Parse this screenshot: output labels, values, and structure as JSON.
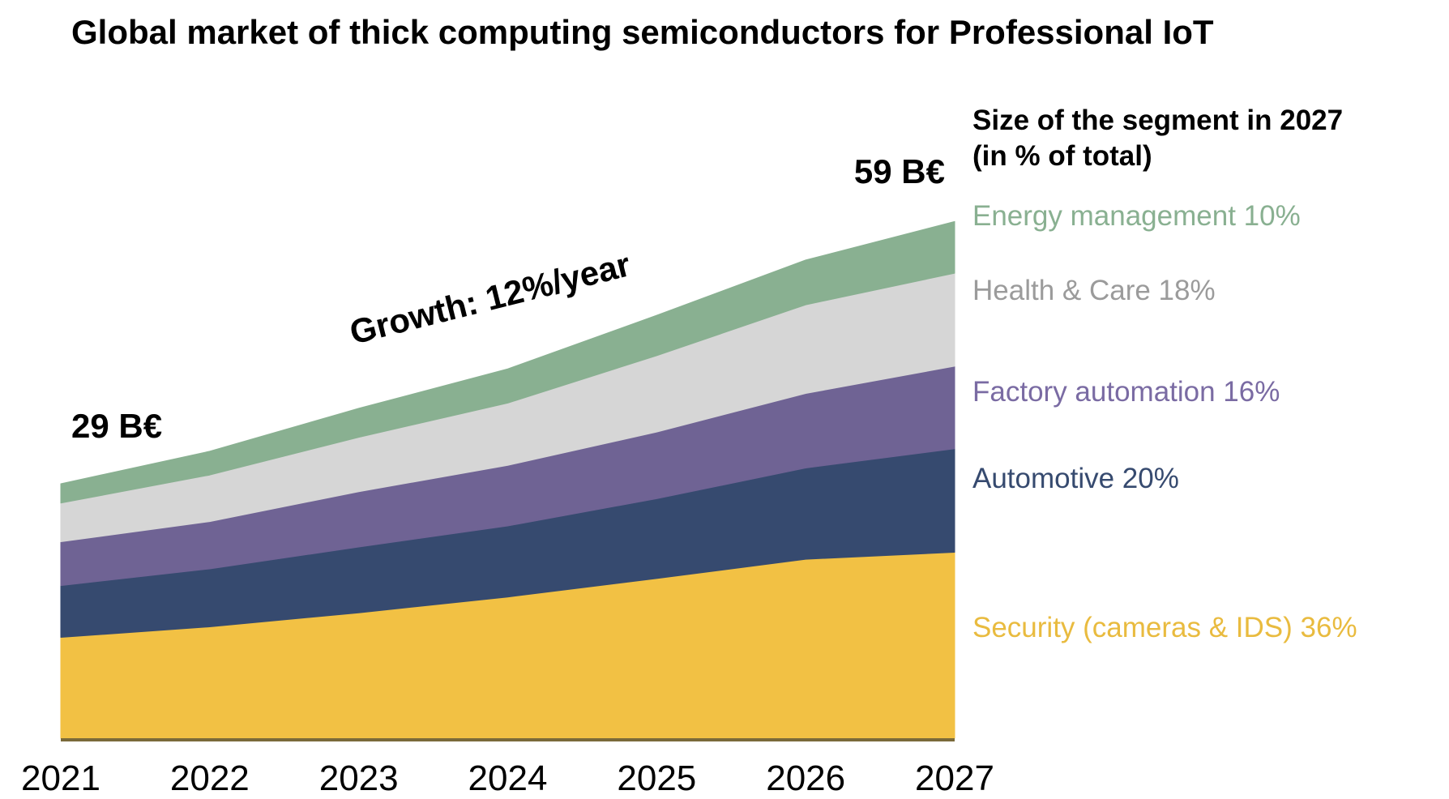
{
  "chart_data": {
    "type": "area",
    "stacked": true,
    "title": "Global market of thick computing semiconductors for Professional IoT",
    "xlabel": "",
    "ylabel": "",
    "unit": "B€",
    "categories": [
      "2021",
      "2022",
      "2023",
      "2024",
      "2025",
      "2026",
      "2027"
    ],
    "ylim": [
      0,
      62
    ],
    "grid": false,
    "series": [
      {
        "name": "Security (cameras & IDS)",
        "color": "#F2C144",
        "values": [
          11.5,
          12.7,
          14.3,
          16.1,
          18.2,
          20.4,
          21.2
        ]
      },
      {
        "name": "Automotive",
        "color": "#364A6F",
        "values": [
          5.9,
          6.6,
          7.5,
          8.1,
          9.1,
          10.4,
          11.8
        ]
      },
      {
        "name": "Factory automation",
        "color": "#6F6394",
        "values": [
          5.0,
          5.4,
          6.3,
          6.9,
          7.6,
          8.5,
          9.4
        ]
      },
      {
        "name": "Health & Care",
        "color": "#D6D6D6",
        "values": [
          4.4,
          5.3,
          6.2,
          7.1,
          8.7,
          10.1,
          10.6
        ]
      },
      {
        "name": "Energy management",
        "color": "#89B091",
        "values": [
          2.2,
          2.7,
          3.3,
          3.9,
          4.6,
          5.1,
          5.9
        ]
      }
    ],
    "annotations": {
      "start_total": "29 B€",
      "end_total": "59 B€",
      "growth": "Growth: 12%/year"
    },
    "legend": {
      "placement": "right",
      "title_line1": "Size of the segment in 2027",
      "title_line2": "(in % of total)",
      "items": [
        {
          "label": "Energy management 10%",
          "color": "#89B091"
        },
        {
          "label": "Health & Care 18%",
          "color": "#9B9B9B"
        },
        {
          "label": "Factory automation 16%",
          "color": "#7A6BA3"
        },
        {
          "label": "Automotive 20%",
          "color": "#364A6F"
        },
        {
          "label": "Security (cameras & IDS) 36%",
          "color": "#E9BB3F"
        }
      ]
    }
  }
}
